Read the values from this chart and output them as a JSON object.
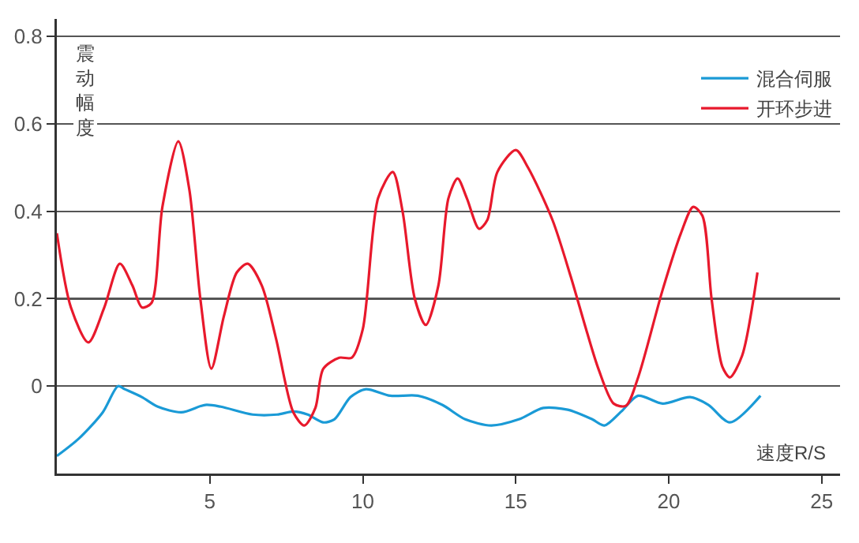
{
  "chart_data": {
    "type": "line",
    "xlabel": "速度R/S",
    "ylabel": "震动幅度",
    "xlim": [
      0,
      25.6
    ],
    "ylim": [
      -0.2,
      0.84
    ],
    "xticks": [
      5,
      10,
      15,
      20,
      25
    ],
    "yticks": [
      0,
      0.2,
      0.4,
      0.6,
      0.8
    ],
    "grid": "y",
    "legend": "top right",
    "marker": "none",
    "line_style": "solid",
    "series": [
      {
        "name": "混合伺服",
        "color": "#1a9ad6",
        "x": [
          0,
          0.72,
          1.5,
          2.0,
          2.22,
          2.78,
          3.3,
          4.07,
          4.85,
          5.36,
          6.4,
          7.2,
          7.73,
          8.2,
          8.7,
          9.07,
          9.6,
          10.1,
          10.9,
          11.8,
          12.6,
          13.35,
          14.2,
          15.1,
          15.9,
          16.7,
          17.5,
          17.9,
          18.45,
          19.0,
          19.8,
          20.7,
          21.3,
          22.0,
          23.0
        ],
        "values": [
          -0.16,
          -0.12,
          -0.06,
          0.0,
          -0.007,
          -0.025,
          -0.047,
          -0.06,
          -0.043,
          -0.047,
          -0.065,
          -0.065,
          -0.058,
          -0.065,
          -0.083,
          -0.076,
          -0.025,
          -0.007,
          -0.022,
          -0.022,
          -0.043,
          -0.076,
          -0.09,
          -0.076,
          -0.05,
          -0.054,
          -0.076,
          -0.09,
          -0.058,
          -0.022,
          -0.04,
          -0.025,
          -0.043,
          -0.083,
          -0.022
        ]
      },
      {
        "name": "开环步进",
        "color": "#e8192c",
        "x": [
          0,
          0.46,
          1.03,
          1.55,
          2.06,
          2.47,
          2.78,
          3.09,
          3.45,
          3.97,
          4.33,
          4.69,
          5.05,
          5.46,
          5.88,
          6.24,
          6.7,
          7.16,
          7.73,
          8.09,
          8.45,
          8.71,
          9.23,
          9.64,
          10.0,
          10.5,
          10.98,
          11.3,
          11.7,
          12.06,
          12.47,
          12.8,
          13.1,
          13.4,
          13.8,
          14.07,
          14.4,
          15.0,
          15.4,
          16.2,
          16.8,
          17.3,
          17.7,
          18.2,
          18.6,
          19.0,
          19.8,
          20.4,
          20.8,
          21.1,
          21.4,
          21.75,
          22.0,
          22.4,
          22.9
        ],
        "values": [
          0.35,
          0.18,
          0.1,
          0.18,
          0.28,
          0.23,
          0.18,
          0.19,
          0.41,
          0.56,
          0.45,
          0.2,
          0.04,
          0.16,
          0.26,
          0.28,
          0.23,
          0.11,
          -0.06,
          -0.09,
          -0.05,
          0.04,
          0.065,
          0.065,
          0.13,
          0.43,
          0.49,
          0.4,
          0.2,
          0.14,
          0.23,
          0.43,
          0.475,
          0.43,
          0.36,
          0.38,
          0.49,
          0.54,
          0.5,
          0.38,
          0.25,
          0.13,
          0.04,
          -0.04,
          -0.045,
          0.02,
          0.22,
          0.35,
          0.41,
          0.39,
          0.2,
          0.045,
          0.02,
          0.07,
          0.26
        ]
      }
    ]
  }
}
